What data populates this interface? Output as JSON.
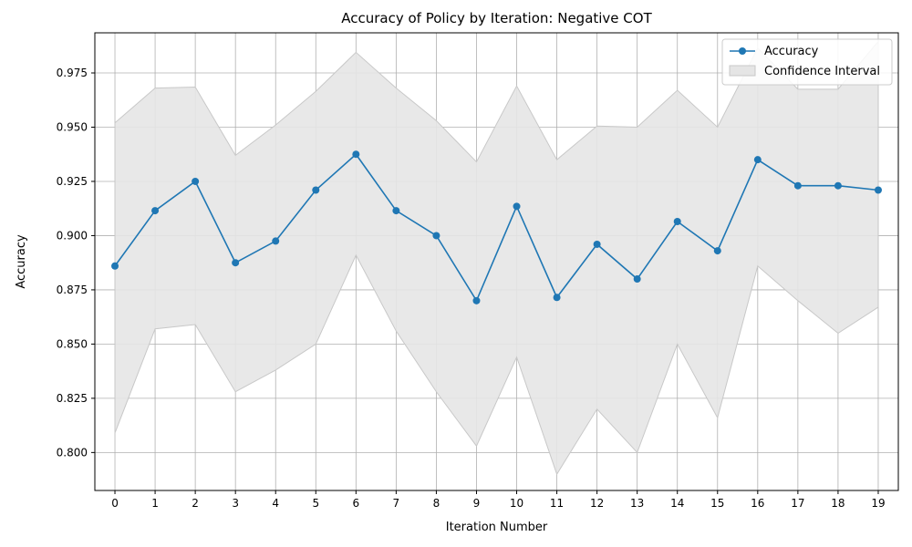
{
  "chart_data": {
    "type": "line",
    "title": "Accuracy of Policy by Iteration: Negative COT",
    "xlabel": "Iteration Number",
    "ylabel": "Accuracy",
    "x": [
      0,
      1,
      2,
      3,
      4,
      5,
      6,
      7,
      8,
      9,
      10,
      11,
      12,
      13,
      14,
      15,
      16,
      17,
      18,
      19
    ],
    "xticks": [
      "0",
      "1",
      "2",
      "3",
      "4",
      "5",
      "6",
      "7",
      "8",
      "9",
      "10",
      "11",
      "12",
      "13",
      "14",
      "15",
      "16",
      "17",
      "18",
      "19"
    ],
    "yticks": [
      0.8,
      0.825,
      0.85,
      0.875,
      0.9,
      0.925,
      0.95,
      0.975
    ],
    "ytick_labels": [
      "0.800",
      "0.825",
      "0.850",
      "0.875",
      "0.900",
      "0.925",
      "0.950",
      "0.975"
    ],
    "xlim": [
      -0.5,
      19.5
    ],
    "ylim": [
      0.7825,
      0.9935
    ],
    "grid": true,
    "legend_position": "top-right",
    "series": [
      {
        "name": "Accuracy",
        "color": "#1f77b4",
        "marker": "circle",
        "values": [
          0.886,
          0.9115,
          0.925,
          0.8875,
          0.8975,
          0.921,
          0.9375,
          0.9115,
          0.9,
          0.87,
          0.9135,
          0.8715,
          0.896,
          0.88,
          0.9065,
          0.893,
          0.935,
          0.923,
          0.923,
          0.921
        ]
      }
    ],
    "confidence_interval": {
      "name": "Confidence Interval",
      "color": "#e5e5e5",
      "edge_color": "#c8c8c8",
      "lower": [
        0.809,
        0.857,
        0.859,
        0.828,
        0.838,
        0.85,
        0.891,
        0.856,
        0.828,
        0.803,
        0.844,
        0.79,
        0.82,
        0.8,
        0.85,
        0.816,
        0.886,
        0.87,
        0.855,
        0.867
      ],
      "upper": [
        0.952,
        0.968,
        0.9685,
        0.937,
        0.951,
        0.9665,
        0.9845,
        0.968,
        0.953,
        0.934,
        0.969,
        0.935,
        0.9505,
        0.95,
        0.967,
        0.95,
        0.9865,
        0.9675,
        0.9675,
        0.9895
      ]
    }
  }
}
